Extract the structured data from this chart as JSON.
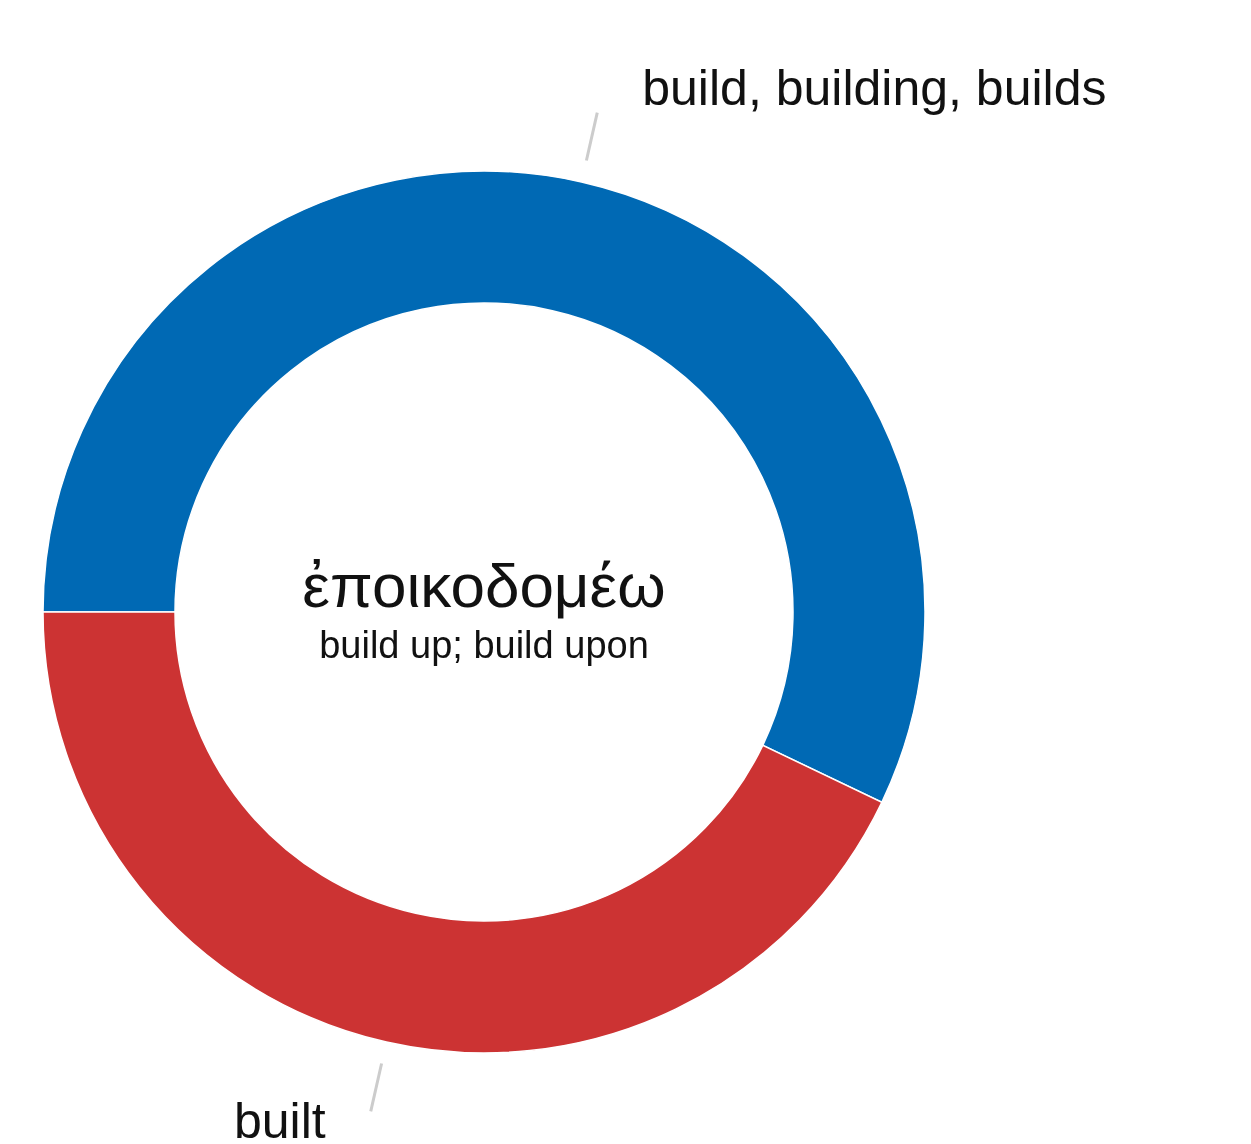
{
  "chart_data": {
    "type": "donut",
    "title": "ἐποικοδομέω",
    "subtitle": "build up; build upon",
    "categories": [
      "build, building, builds",
      "built"
    ],
    "values": [
      57.1,
      42.9
    ],
    "colors": [
      "#0069b4",
      "#cc3333"
    ],
    "legend": false
  }
}
